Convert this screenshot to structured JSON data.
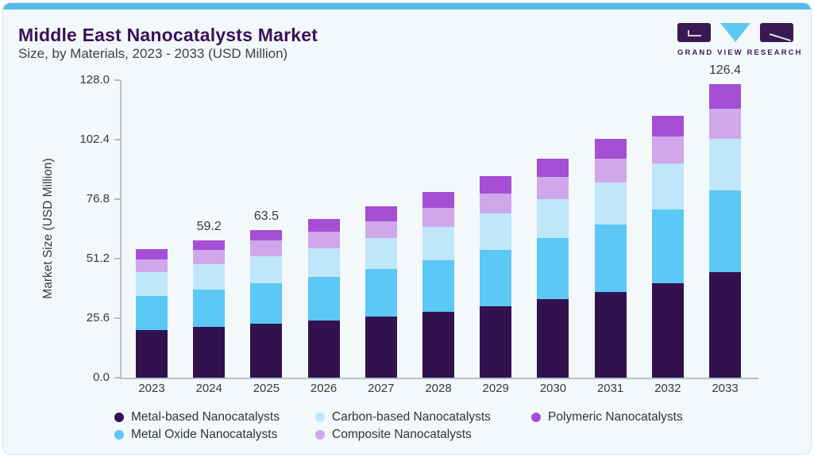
{
  "header": {
    "title": "Middle East Nanocatalysts Market",
    "subtitle": "Size, by Materials, 2023 - 2033 (USD Million)"
  },
  "logo": {
    "text": "GRAND VIEW RESEARCH",
    "mark_color": "#381952",
    "triangle_color": "#5ec8f0"
  },
  "colors": {
    "card_background": "#f3f8fb",
    "top_bar": "#58bce9",
    "title_text": "#3b1157",
    "axis_line": "#b6c0c8",
    "axis_text": "#3a3a3a"
  },
  "chart_data": {
    "type": "bar",
    "stacked": true,
    "title": "Middle East Nanocatalysts Market Size, by Materials, 2023 - 2033 (USD Million)",
    "xlabel": "",
    "ylabel": "Market Size (USD Million)",
    "ylim": [
      0,
      128
    ],
    "yticks": [
      "0.0",
      "25.6",
      "51.2",
      "76.8",
      "102.4",
      "128.0"
    ],
    "grid": false,
    "legend_position": "bottom",
    "categories": [
      "2023",
      "2024",
      "2025",
      "2026",
      "2027",
      "2028",
      "2029",
      "2030",
      "2031",
      "2032",
      "2033"
    ],
    "series": [
      {
        "name": "Metal-based Nanocatalysts",
        "color": "#31124f",
        "values": [
          20.4,
          21.8,
          23.2,
          24.6,
          26.3,
          28.3,
          30.8,
          33.8,
          37.0,
          40.7,
          45.3
        ]
      },
      {
        "name": "Metal Oxide Nanocatalysts",
        "color": "#5bc8f5",
        "values": [
          14.8,
          16.1,
          17.3,
          18.8,
          20.4,
          22.3,
          24.2,
          26.4,
          28.8,
          31.6,
          35.1
        ]
      },
      {
        "name": "Carbon-based Nanocatalysts",
        "color": "#c0e7f9",
        "values": [
          10.1,
          10.8,
          11.6,
          12.4,
          13.3,
          14.3,
          15.5,
          16.7,
          18.1,
          19.7,
          22.2
        ]
      },
      {
        "name": "Composite Nanocatalysts",
        "color": "#d0a7ea",
        "values": [
          5.7,
          6.2,
          6.8,
          6.9,
          7.4,
          8.0,
          8.7,
          9.5,
          10.4,
          11.6,
          13.2
        ]
      },
      {
        "name": "Polymeric Nanocatalysts",
        "color": "#a44fd4",
        "values": [
          4.4,
          4.3,
          4.6,
          5.6,
          6.4,
          7.0,
          7.4,
          7.9,
          8.5,
          9.2,
          10.6
        ]
      }
    ],
    "labeled_totals": [
      null,
      "59.2",
      "63.5",
      null,
      null,
      null,
      null,
      null,
      null,
      null,
      "126.4"
    ],
    "legend_rows": [
      [
        "Metal-based Nanocatalysts",
        "Carbon-based Nanocatalysts",
        "Polymeric Nanocatalysts"
      ],
      [
        "Metal Oxide Nanocatalysts",
        "Composite Nanocatalysts"
      ]
    ]
  }
}
